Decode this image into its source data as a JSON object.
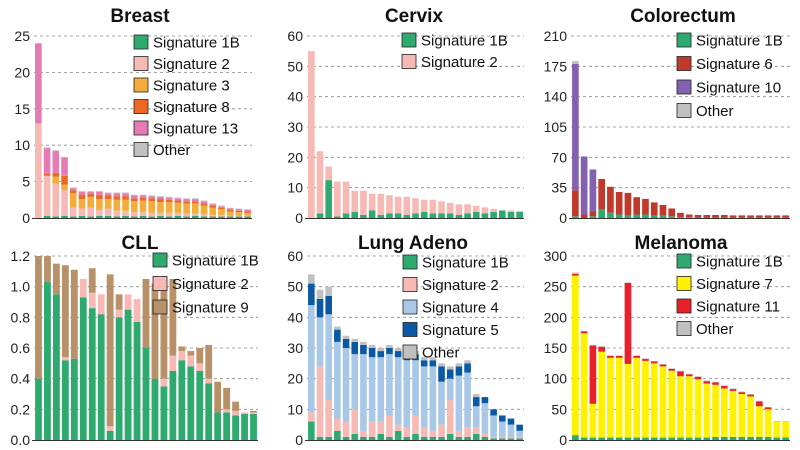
{
  "colors": {
    "Signature 1B": "#2eaa6e",
    "Signature 2": "#f6b9b4",
    "Signature 3": "#f4ad3c",
    "Signature 4": "#a9c7e6",
    "Signature 5": "#0b59a5",
    "Signature 6": "#c0392b",
    "Signature 7": "#fff200",
    "Signature 8": "#ef6724",
    "Signature 9": "#b89168",
    "Signature 10": "#8460b0",
    "Signature 11": "#e8202a",
    "Signature 13": "#e57bb5",
    "Other": "#c0c0c0"
  },
  "chart_data": [
    {
      "type": "bar",
      "title": "Breast",
      "ylim": [
        0,
        25
      ],
      "yticks": [
        "0",
        "5",
        "10",
        "15",
        "20",
        "25"
      ],
      "grid": true,
      "legend": [
        "Signature 1B",
        "Signature 2",
        "Signature 3",
        "Signature 8",
        "Signature 13",
        "Other"
      ],
      "series": [
        {
          "name": "Signature 1B",
          "values": [
            0,
            0.3,
            0.2,
            0.3,
            0.2,
            0.3,
            0.2,
            0.3,
            0.3,
            0.2,
            0.3,
            0.2,
            0.3,
            0.2,
            0.3,
            0.2,
            0.3,
            0.2,
            0.3,
            0.2,
            0.2,
            0.2,
            0.2,
            0.2,
            0.2
          ]
        },
        {
          "name": "Signature 2",
          "values": [
            13,
            5.5,
            4.5,
            3.5,
            1.2,
            1,
            1.2,
            0.8,
            1,
            0.8,
            0.7,
            0.6,
            0.5,
            0.5,
            0.4,
            0.5,
            0.4,
            0.4,
            0.3,
            0.3,
            0.2,
            0.2,
            0.1,
            0.1,
            0.1
          ]
        },
        {
          "name": "Signature 3",
          "values": [
            0,
            0,
            1,
            0.8,
            2,
            1.3,
            1.5,
            1.5,
            1.3,
            1.5,
            1.5,
            1.5,
            1.6,
            1.6,
            1.5,
            1.5,
            1.4,
            1.4,
            1.4,
            1.2,
            1,
            0.8,
            0.6,
            0.5,
            0.4
          ]
        },
        {
          "name": "Signature 8",
          "values": [
            0,
            0.3,
            0.5,
            1.2,
            0.4,
            0.6,
            0.4,
            0.6,
            0.5,
            0.5,
            0.5,
            0.4,
            0.4,
            0.4,
            0.4,
            0.3,
            0.3,
            0.3,
            0.3,
            0.3,
            0.3,
            0.2,
            0.2,
            0.2,
            0.2
          ]
        },
        {
          "name": "Signature 13",
          "values": [
            11,
            3.5,
            3,
            2.5,
            0.3,
            0.4,
            0.3,
            0.4,
            0.3,
            0.4,
            0.4,
            0.4,
            0.3,
            0.3,
            0.3,
            0.3,
            0.3,
            0.3,
            0.3,
            0.3,
            0.2,
            0.2,
            0.2,
            0.2,
            0.2
          ]
        },
        {
          "name": "Other",
          "values": [
            0,
            0.1,
            0.1,
            0.1,
            0.1,
            0.1,
            0.1,
            0.1,
            0.1,
            0.1,
            0.1,
            0.1,
            0.1,
            0.1,
            0.1,
            0.1,
            0.1,
            0.1,
            0.1,
            0.1,
            0.1,
            0.1,
            0.1,
            0.1,
            0.1
          ]
        }
      ]
    },
    {
      "type": "bar",
      "title": "Cervix",
      "ylim": [
        0,
        60
      ],
      "yticks": [
        "0",
        "10",
        "20",
        "30",
        "40",
        "50",
        "60"
      ],
      "grid": true,
      "legend": [
        "Signature 1B",
        "Signature 2"
      ],
      "series": [
        {
          "name": "Signature 1B",
          "values": [
            0,
            1.5,
            12.5,
            0.5,
            1.5,
            2,
            1,
            2.5,
            1,
            1.5,
            1.5,
            1,
            1.5,
            2,
            1.5,
            1.5,
            1.5,
            1,
            1.5,
            2,
            1.5,
            2,
            2.5,
            2,
            2
          ]
        },
        {
          "name": "Signature 2",
          "values": [
            55,
            20.5,
            4.5,
            11.5,
            10.5,
            7,
            8,
            5.5,
            7,
            6,
            5.5,
            6,
            5,
            4,
            4.5,
            4,
            3.5,
            3.5,
            3,
            2,
            2,
            1,
            0,
            0.5,
            0.3
          ]
        }
      ]
    },
    {
      "type": "bar",
      "title": "Colorectum",
      "ylim": [
        0,
        210
      ],
      "yticks": [
        "0",
        "35",
        "70",
        "105",
        "140",
        "175",
        "210"
      ],
      "grid": true,
      "legend": [
        "Signature 1B",
        "Signature 6",
        "Signature 10",
        "Other"
      ],
      "series": [
        {
          "name": "Signature 1B",
          "values": [
            2,
            0,
            2,
            10,
            6,
            4,
            3,
            4,
            4,
            3,
            3,
            2,
            1,
            1,
            0.5,
            0.5,
            0.5,
            0.5,
            0.5,
            0.5,
            0.5,
            0.5,
            0.5,
            0.5,
            0.5
          ]
        },
        {
          "name": "Signature 6",
          "values": [
            30,
            4,
            6,
            35,
            30,
            26,
            26,
            20,
            18,
            15,
            12,
            9,
            5,
            3,
            3,
            3,
            3,
            3,
            2.5,
            2.5,
            2.5,
            2.5,
            2.5,
            2.5,
            2.5
          ]
        },
        {
          "name": "Signature 10",
          "values": [
            146,
            67,
            48,
            0,
            0,
            0,
            0,
            0,
            0,
            0,
            0,
            0,
            0,
            0,
            0,
            0,
            0,
            0,
            0,
            0,
            0,
            0,
            0,
            0,
            0
          ]
        },
        {
          "name": "Other",
          "values": [
            3,
            0,
            0,
            0,
            0,
            0,
            0,
            0,
            0,
            0,
            0,
            0,
            0,
            0,
            0,
            0,
            0,
            0,
            0,
            0,
            0,
            0,
            0,
            0,
            0
          ]
        }
      ]
    },
    {
      "type": "bar",
      "title": "CLL",
      "ylim": [
        0,
        1.2
      ],
      "yticks": [
        "0.0",
        "0.2",
        "0.4",
        "0.6",
        "0.8",
        "1.0",
        "1.2"
      ],
      "grid": true,
      "legend": [
        "Signature 1B",
        "Signature 2",
        "Signature 9"
      ],
      "series": [
        {
          "name": "Signature 1B",
          "values": [
            0.4,
            1.03,
            0.95,
            0.52,
            0.53,
            0.93,
            0.86,
            0.82,
            0.06,
            0.8,
            0.85,
            0.77,
            0.6,
            0.4,
            0.35,
            0.45,
            0.52,
            0.48,
            0.45,
            0.37,
            0.18,
            0.18,
            0.16,
            0.17,
            0.17
          ]
        },
        {
          "name": "Signature 2",
          "values": [
            0,
            0,
            0,
            0.02,
            0,
            0.12,
            0.1,
            0.13,
            0.03,
            0.05,
            0.1,
            0.15,
            0,
            0,
            0.05,
            0.1,
            0.06,
            0.07,
            0.05,
            0.03,
            0,
            0.02,
            0.03,
            0.01,
            0.01
          ]
        },
        {
          "name": "Signature 9",
          "values": [
            0.8,
            0.17,
            0.2,
            0.6,
            0.58,
            0,
            0.16,
            0,
            0.99,
            0.1,
            0,
            0,
            0.45,
            0.62,
            0.6,
            0.5,
            0.03,
            0.03,
            0.1,
            0.22,
            0.2,
            0.14,
            0.06,
            0,
            0.01
          ]
        }
      ]
    },
    {
      "type": "bar",
      "title": "Lung Adeno",
      "ylim": [
        0,
        60
      ],
      "yticks": [
        "0",
        "10",
        "20",
        "30",
        "40",
        "50",
        "60"
      ],
      "grid": true,
      "legend": [
        "Signature 1B",
        "Signature 2",
        "Signature 4",
        "Signature 5",
        "Other"
      ],
      "series": [
        {
          "name": "Signature 1B",
          "values": [
            6,
            1,
            1,
            3,
            1,
            2,
            1,
            1,
            2,
            1,
            3,
            1,
            2,
            1,
            1,
            1,
            2,
            1,
            1,
            2,
            1,
            0.5,
            0.5,
            0.5,
            0.5
          ]
        },
        {
          "name": "Signature 2",
          "values": [
            3,
            23,
            12,
            4,
            5,
            8,
            2,
            5,
            4,
            7,
            2,
            3,
            6,
            3,
            2,
            4,
            11,
            2,
            3,
            2,
            1,
            0.5,
            0.5,
            0.5,
            0.5
          ]
        },
        {
          "name": "Signature 4",
          "values": [
            35,
            16,
            28,
            25,
            24,
            18,
            25,
            21,
            21,
            20,
            22,
            22,
            18,
            20,
            21,
            14,
            7,
            18,
            18,
            7,
            10,
            7,
            5,
            4,
            2
          ]
        },
        {
          "name": "Signature 5",
          "values": [
            7,
            6,
            6,
            4,
            3,
            4,
            3,
            3,
            2,
            2,
            2,
            4,
            2,
            2,
            2,
            5,
            3,
            3,
            3,
            3,
            2,
            2,
            2,
            2,
            2
          ]
        },
        {
          "name": "Other",
          "values": [
            3,
            3,
            3,
            1,
            1,
            1,
            1,
            1,
            1,
            1,
            1,
            1,
            1,
            1,
            1,
            1,
            1,
            1,
            1,
            1,
            0,
            0,
            0,
            0,
            0
          ]
        }
      ]
    },
    {
      "type": "bar",
      "title": "Melanoma",
      "ylim": [
        0,
        300
      ],
      "yticks": [
        "0",
        "50",
        "100",
        "150",
        "200",
        "250",
        "300"
      ],
      "grid": true,
      "legend": [
        "Signature 1B",
        "Signature 7",
        "Signature 11",
        "Other"
      ],
      "series": [
        {
          "name": "Signature 1B",
          "values": [
            8,
            4,
            4,
            4,
            4,
            4,
            4,
            4,
            4,
            4,
            4,
            4,
            4,
            4,
            4,
            4,
            5,
            5,
            5,
            5,
            5,
            5,
            5,
            4,
            4
          ]
        },
        {
          "name": "Signature 7",
          "values": [
            260,
            170,
            55,
            140,
            130,
            130,
            120,
            130,
            125,
            121,
            116,
            109,
            100,
            100,
            95,
            88,
            85,
            79,
            75,
            70,
            66,
            50,
            45,
            26,
            26
          ]
        },
        {
          "name": "Signature 11",
          "values": [
            3,
            3,
            95,
            8,
            3,
            3,
            132,
            3,
            3,
            3,
            3,
            3,
            8,
            3,
            4,
            4,
            4,
            4,
            3,
            3,
            3,
            8,
            3,
            0,
            0
          ]
        },
        {
          "name": "Other",
          "values": [
            2,
            1,
            1,
            1,
            1,
            1,
            1,
            1,
            1,
            1,
            1,
            1,
            1,
            1,
            1,
            1,
            1,
            1,
            1,
            1,
            1,
            1,
            1,
            1,
            1
          ]
        }
      ]
    }
  ]
}
